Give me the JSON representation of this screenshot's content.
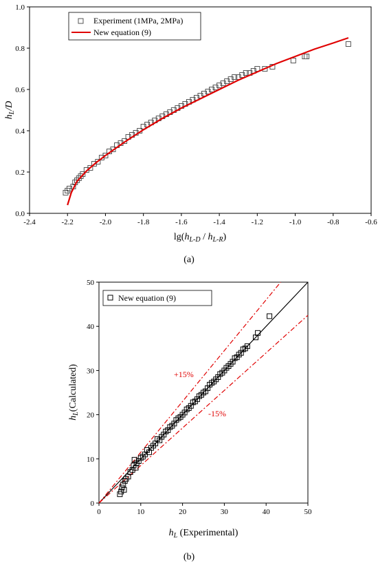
{
  "chart_data": [
    {
      "type": "scatter",
      "panel_label": "(a)",
      "xlabel_parts": {
        "base": "lg(",
        "h1": "h",
        "s1": "L-D",
        "mid": " / ",
        "h2": "h",
        "s2": "L-R",
        "end": ")"
      },
      "ylabel_parts": {
        "h": "h",
        "s": "L",
        "rest": "/D"
      },
      "xlim": [
        -2.4,
        -0.6
      ],
      "ylim": [
        0.0,
        1.0
      ],
      "xticks": [
        "-2.4",
        "-2.2",
        "-2.0",
        "-1.8",
        "-1.6",
        "-1.4",
        "-1.2",
        "-1.0",
        "-0.8",
        "-0.6"
      ],
      "yticks": [
        "0.0",
        "0.2",
        "0.4",
        "0.6",
        "0.8",
        "1.0"
      ],
      "legend_position": "top-left",
      "series": [
        {
          "name": "Experiment (1MPa, 2MPa)",
          "marker": "open-square",
          "color": "#555555",
          "points": [
            [
              -2.21,
              0.1
            ],
            [
              -2.2,
              0.11
            ],
            [
              -2.19,
              0.12
            ],
            [
              -2.17,
              0.13
            ],
            [
              -2.16,
              0.15
            ],
            [
              -2.15,
              0.16
            ],
            [
              -2.14,
              0.17
            ],
            [
              -2.13,
              0.18
            ],
            [
              -2.12,
              0.19
            ],
            [
              -2.1,
              0.21
            ],
            [
              -2.08,
              0.22
            ],
            [
              -2.06,
              0.24
            ],
            [
              -2.04,
              0.25
            ],
            [
              -2.02,
              0.27
            ],
            [
              -2.0,
              0.28
            ],
            [
              -1.98,
              0.3
            ],
            [
              -1.96,
              0.31
            ],
            [
              -1.94,
              0.33
            ],
            [
              -1.92,
              0.34
            ],
            [
              -1.9,
              0.35
            ],
            [
              -1.88,
              0.37
            ],
            [
              -1.86,
              0.38
            ],
            [
              -1.84,
              0.39
            ],
            [
              -1.82,
              0.4
            ],
            [
              -1.8,
              0.42
            ],
            [
              -1.78,
              0.43
            ],
            [
              -1.76,
              0.44
            ],
            [
              -1.74,
              0.45
            ],
            [
              -1.72,
              0.46
            ],
            [
              -1.7,
              0.47
            ],
            [
              -1.68,
              0.48
            ],
            [
              -1.66,
              0.49
            ],
            [
              -1.64,
              0.5
            ],
            [
              -1.62,
              0.51
            ],
            [
              -1.6,
              0.52
            ],
            [
              -1.58,
              0.53
            ],
            [
              -1.56,
              0.54
            ],
            [
              -1.54,
              0.55
            ],
            [
              -1.52,
              0.56
            ],
            [
              -1.5,
              0.57
            ],
            [
              -1.48,
              0.58
            ],
            [
              -1.46,
              0.59
            ],
            [
              -1.44,
              0.6
            ],
            [
              -1.42,
              0.61
            ],
            [
              -1.4,
              0.62
            ],
            [
              -1.38,
              0.63
            ],
            [
              -1.36,
              0.64
            ],
            [
              -1.34,
              0.65
            ],
            [
              -1.32,
              0.66
            ],
            [
              -1.3,
              0.66
            ],
            [
              -1.28,
              0.67
            ],
            [
              -1.26,
              0.68
            ],
            [
              -1.24,
              0.68
            ],
            [
              -1.22,
              0.69
            ],
            [
              -1.2,
              0.7
            ],
            [
              -1.16,
              0.7
            ],
            [
              -1.12,
              0.71
            ],
            [
              -1.01,
              0.74
            ],
            [
              -0.95,
              0.76
            ],
            [
              -0.94,
              0.76
            ],
            [
              -0.72,
              0.82
            ]
          ]
        },
        {
          "name": "New equation (9)",
          "marker": "line",
          "color": "#e00000",
          "curve": [
            [
              -2.2,
              0.04
            ],
            [
              -2.18,
              0.1
            ],
            [
              -2.15,
              0.155
            ],
            [
              -2.1,
              0.205
            ],
            [
              -2.05,
              0.245
            ],
            [
              -2.0,
              0.28
            ],
            [
              -1.9,
              0.345
            ],
            [
              -1.8,
              0.405
            ],
            [
              -1.7,
              0.46
            ],
            [
              -1.6,
              0.51
            ],
            [
              -1.5,
              0.555
            ],
            [
              -1.4,
              0.6
            ],
            [
              -1.3,
              0.645
            ],
            [
              -1.2,
              0.685
            ],
            [
              -1.1,
              0.725
            ],
            [
              -1.0,
              0.76
            ],
            [
              -0.9,
              0.795
            ],
            [
              -0.8,
              0.825
            ],
            [
              -0.72,
              0.85
            ]
          ]
        }
      ]
    },
    {
      "type": "scatter",
      "panel_label": "(b)",
      "xlabel_parts": {
        "h": "h",
        "s": "L",
        "rest": " (Experimental)"
      },
      "ylabel_parts": {
        "h": "h",
        "s": "L",
        "rest": "(Calculated)"
      },
      "xlim": [
        0,
        50
      ],
      "ylim": [
        0,
        50
      ],
      "xticks": [
        "0",
        "10",
        "20",
        "30",
        "40",
        "50"
      ],
      "yticks": [
        "0",
        "10",
        "20",
        "30",
        "40",
        "50"
      ],
      "legend_position": "top-left",
      "band_labels": [
        "+15%",
        "-15%"
      ],
      "series": [
        {
          "name": "New equation (9)",
          "marker": "open-square",
          "color": "#000000",
          "points": [
            [
              5.0,
              2.0
            ],
            [
              5.3,
              2.6
            ],
            [
              5.5,
              3.5
            ],
            [
              5.8,
              4.2
            ],
            [
              6.0,
              3.0
            ],
            [
              6.2,
              5.0
            ],
            [
              6.5,
              5.5
            ],
            [
              7.0,
              6.0
            ],
            [
              7.5,
              7.0
            ],
            [
              8.0,
              7.5
            ],
            [
              8.3,
              8.5
            ],
            [
              8.5,
              9.8
            ],
            [
              8.8,
              8.0
            ],
            [
              9.0,
              9.0
            ],
            [
              9.5,
              9.5
            ],
            [
              10.0,
              10.2
            ],
            [
              10.5,
              10.5
            ],
            [
              11.0,
              11.0
            ],
            [
              11.5,
              12.0
            ],
            [
              12.0,
              11.5
            ],
            [
              12.5,
              12.5
            ],
            [
              13.0,
              13.0
            ],
            [
              13.5,
              13.5
            ],
            [
              14.0,
              14.5
            ],
            [
              14.5,
              14.2
            ],
            [
              15.0,
              15.0
            ],
            [
              15.5,
              15.5
            ],
            [
              16.0,
              16.2
            ],
            [
              16.5,
              16.5
            ],
            [
              17.0,
              17.2
            ],
            [
              17.5,
              17.5
            ],
            [
              18.0,
              18.0
            ],
            [
              18.5,
              18.8
            ],
            [
              19.0,
              19.2
            ],
            [
              19.5,
              19.5
            ],
            [
              20.0,
              20.0
            ],
            [
              20.5,
              20.5
            ],
            [
              21.0,
              21.2
            ],
            [
              21.5,
              21.5
            ],
            [
              22.0,
              22.0
            ],
            [
              22.5,
              22.8
            ],
            [
              23.0,
              23.0
            ],
            [
              23.5,
              23.5
            ],
            [
              24.0,
              24.2
            ],
            [
              24.5,
              24.5
            ],
            [
              25.0,
              25.0
            ],
            [
              25.5,
              25.3
            ],
            [
              26.0,
              26.0
            ],
            [
              26.5,
              26.8
            ],
            [
              27.0,
              27.2
            ],
            [
              27.5,
              27.5
            ],
            [
              28.0,
              28.0
            ],
            [
              28.5,
              28.5
            ],
            [
              29.0,
              29.2
            ],
            [
              29.5,
              29.5
            ],
            [
              30.0,
              30.0
            ],
            [
              30.5,
              30.6
            ],
            [
              31.0,
              31.0
            ],
            [
              31.5,
              31.5
            ],
            [
              32.0,
              32.0
            ],
            [
              32.5,
              32.8
            ],
            [
              33.0,
              33.0
            ],
            [
              33.5,
              33.6
            ],
            [
              34.0,
              34.0
            ],
            [
              34.5,
              34.8
            ],
            [
              35.0,
              35.0
            ],
            [
              35.5,
              35.5
            ],
            [
              37.5,
              37.5
            ],
            [
              38.0,
              38.5
            ],
            [
              40.8,
              42.3
            ]
          ]
        }
      ]
    }
  ]
}
